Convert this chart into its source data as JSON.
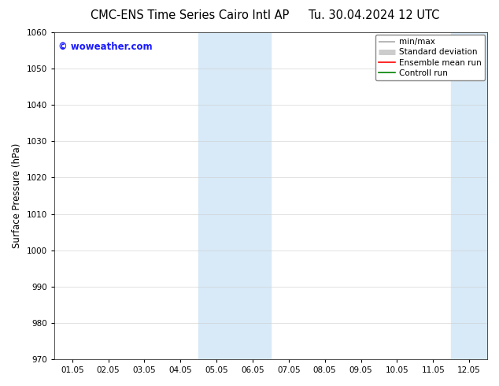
{
  "title_left": "CMC-ENS Time Series Cairo Intl AP",
  "title_right": "Tu. 30.04.2024 12 UTC",
  "ylabel": "Surface Pressure (hPa)",
  "ylim": [
    970,
    1060
  ],
  "yticks": [
    970,
    980,
    990,
    1000,
    1010,
    1020,
    1030,
    1040,
    1050,
    1060
  ],
  "xtick_labels": [
    "01.05",
    "02.05",
    "03.05",
    "04.05",
    "05.05",
    "06.05",
    "07.05",
    "08.05",
    "09.05",
    "10.05",
    "11.05",
    "12.05"
  ],
  "xtick_positions": [
    0,
    1,
    2,
    3,
    4,
    5,
    6,
    7,
    8,
    9,
    10,
    11
  ],
  "shaded_bands": [
    {
      "xmin": 3.5,
      "xmax": 5.5
    },
    {
      "xmin": 10.5,
      "xmax": 12.0
    }
  ],
  "shade_color": "#d8eaf8",
  "background_color": "#ffffff",
  "watermark_text": "© woweather.com",
  "watermark_color": "#1a1aff",
  "legend_entries": [
    {
      "label": "min/max",
      "color": "#aaaaaa",
      "lw": 1.2
    },
    {
      "label": "Standard deviation",
      "color": "#cccccc",
      "lw": 5.0
    },
    {
      "label": "Ensemble mean run",
      "color": "#ff0000",
      "lw": 1.2
    },
    {
      "label": "Controll run",
      "color": "#008000",
      "lw": 1.2
    }
  ],
  "title_fontsize": 10.5,
  "tick_fontsize": 7.5,
  "ylabel_fontsize": 8.5,
  "legend_fontsize": 7.5,
  "watermark_fontsize": 8.5
}
